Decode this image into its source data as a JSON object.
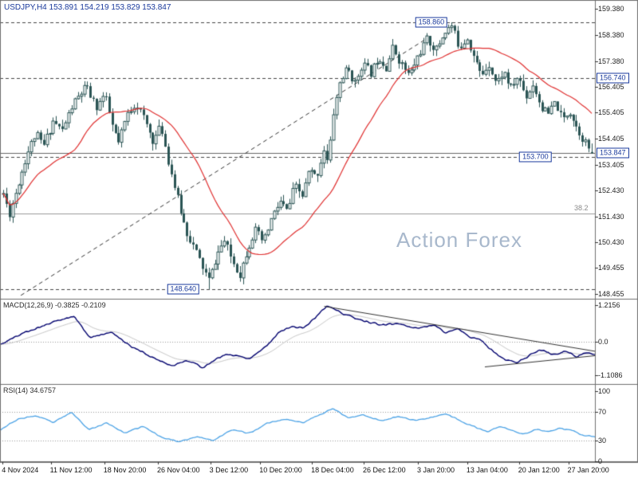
{
  "header": {
    "title": "USDJPY,H4 153.891 154.219 153.829 153.847"
  },
  "watermark": "Action Forex",
  "colors": {
    "background": "#ffffff",
    "candle": "#2a5454",
    "ma_line": "#e03030",
    "macd_line": "#00006e",
    "macd_signal": "#c6c6c6",
    "rsi_line": "#4aa2e6",
    "level_line": "#444444",
    "label_accent": "#1a3a9c",
    "axis_text": "#222222",
    "watermark": "#a8b8cc",
    "grid_dotted": "#999999",
    "separator": "#707070",
    "trendline": "#333333",
    "fib_line": "#999999",
    "current_price_line": "#666666"
  },
  "chart_data": {
    "type": "candlestick",
    "symbol": "USDJPY",
    "timeframe": "H4",
    "current_bar": {
      "open": 153.891,
      "high": 154.219,
      "low": 153.829,
      "close": 153.847
    },
    "price_axis_ticks": [
      {
        "text": "159.380",
        "value": 159.38
      },
      {
        "text": "158.380",
        "value": 158.38
      },
      {
        "text": "157.380",
        "value": 157.38
      },
      {
        "text": "156.405",
        "value": 156.405
      },
      {
        "text": "155.405",
        "value": 155.405
      },
      {
        "text": "154.405",
        "value": 154.405
      },
      {
        "text": "153.405",
        "value": 153.405
      },
      {
        "text": "152.430",
        "value": 152.43
      },
      {
        "text": "151.430",
        "value": 151.43
      },
      {
        "text": "150.430",
        "value": 150.43
      },
      {
        "text": "149.455",
        "value": 149.455
      },
      {
        "text": "148.455",
        "value": 148.455
      }
    ],
    "levels": [
      {
        "text": "158.860",
        "value": 158.86,
        "label_x": 0.725,
        "placement": "chart"
      },
      {
        "text": "156.740",
        "value": 156.74,
        "label_x": null,
        "placement": "axis"
      },
      {
        "text": "153.700",
        "value": 153.7,
        "label_x": 0.9,
        "placement": "chart"
      },
      {
        "text": "148.640",
        "value": 148.64,
        "label_x": 0.308,
        "placement": "chart"
      }
    ],
    "current_price": {
      "text": "153.847",
      "value": 153.847
    },
    "fibonacci": {
      "text": "38.2",
      "value": 151.55
    },
    "trendline": {
      "x1": 0.035,
      "p1": 148.4,
      "x2": 0.718,
      "p2": 158.25
    },
    "x_axis_labels": [
      {
        "text": "4 Nov 2024",
        "x": 0.003
      },
      {
        "text": "11 Nov 12:00",
        "x": 0.084
      },
      {
        "text": "18 Nov 20:00",
        "x": 0.174
      },
      {
        "text": "26 Nov 04:00",
        "x": 0.264
      },
      {
        "text": "3 Dec 12:00",
        "x": 0.352
      },
      {
        "text": "10 Dec 20:00",
        "x": 0.436
      },
      {
        "text": "18 Dec 04:00",
        "x": 0.523
      },
      {
        "text": "26 Dec 12:00",
        "x": 0.61
      },
      {
        "text": "3 Jan 20:00",
        "x": 0.701
      },
      {
        "text": "13 Jan 04:00",
        "x": 0.784
      },
      {
        "text": "20 Jan 12:00",
        "x": 0.871
      },
      {
        "text": "27 Jan 20:00",
        "x": 0.954
      }
    ],
    "price_path_anchors": [
      [
        0.0,
        152.3
      ],
      [
        0.01,
        151.5
      ],
      [
        0.022,
        152.4
      ],
      [
        0.04,
        153.8
      ],
      [
        0.055,
        154.6
      ],
      [
        0.068,
        154.1
      ],
      [
        0.085,
        155.1
      ],
      [
        0.1,
        154.7
      ],
      [
        0.118,
        155.7
      ],
      [
        0.14,
        156.4
      ],
      [
        0.158,
        155.6
      ],
      [
        0.172,
        156.1
      ],
      [
        0.185,
        154.9
      ],
      [
        0.196,
        154.2
      ],
      [
        0.21,
        155.3
      ],
      [
        0.225,
        155.8
      ],
      [
        0.24,
        155.1
      ],
      [
        0.255,
        154.3
      ],
      [
        0.268,
        154.9
      ],
      [
        0.28,
        153.6
      ],
      [
        0.295,
        152.2
      ],
      [
        0.31,
        150.9
      ],
      [
        0.325,
        150.2
      ],
      [
        0.338,
        149.5
      ],
      [
        0.35,
        148.95
      ],
      [
        0.362,
        149.9
      ],
      [
        0.375,
        150.5
      ],
      [
        0.39,
        149.7
      ],
      [
        0.402,
        149.2
      ],
      [
        0.415,
        150.2
      ],
      [
        0.428,
        150.9
      ],
      [
        0.442,
        150.4
      ],
      [
        0.455,
        151.3
      ],
      [
        0.47,
        152.0
      ],
      [
        0.483,
        151.6
      ],
      [
        0.495,
        152.6
      ],
      [
        0.508,
        152.2
      ],
      [
        0.52,
        153.2
      ],
      [
        0.532,
        152.9
      ],
      [
        0.545,
        154.0
      ],
      [
        0.552,
        153.4
      ],
      [
        0.56,
        155.3
      ],
      [
        0.572,
        156.6
      ],
      [
        0.585,
        157.1
      ],
      [
        0.598,
        156.5
      ],
      [
        0.61,
        157.3
      ],
      [
        0.625,
        156.9
      ],
      [
        0.638,
        157.6
      ],
      [
        0.65,
        157.1
      ],
      [
        0.662,
        157.9
      ],
      [
        0.675,
        157.3
      ],
      [
        0.69,
        156.8
      ],
      [
        0.705,
        157.6
      ],
      [
        0.72,
        158.2
      ],
      [
        0.735,
        157.8
      ],
      [
        0.75,
        158.5
      ],
      [
        0.762,
        158.72
      ],
      [
        0.775,
        157.9
      ],
      [
        0.788,
        158.3
      ],
      [
        0.8,
        157.5
      ],
      [
        0.812,
        156.8
      ],
      [
        0.825,
        157.3
      ],
      [
        0.838,
        156.5
      ],
      [
        0.85,
        157.0
      ],
      [
        0.862,
        156.3
      ],
      [
        0.875,
        156.8
      ],
      [
        0.888,
        156.0
      ],
      [
        0.9,
        156.5
      ],
      [
        0.912,
        155.7
      ],
      [
        0.925,
        155.3
      ],
      [
        0.938,
        155.8
      ],
      [
        0.95,
        155.1
      ],
      [
        0.962,
        155.5
      ],
      [
        0.975,
        154.8
      ],
      [
        0.988,
        154.3
      ],
      [
        1.0,
        153.85
      ]
    ],
    "indicators": {
      "macd": {
        "label": "MACD(12,26,9) -0.3825 -0.2109",
        "params": "12,26,9",
        "macd_value": -0.3825,
        "signal_value": -0.2109,
        "axis_ticks": [
          {
            "text": "1.2156",
            "value": 1.2156
          },
          {
            "text": "0.0",
            "value": 0
          },
          {
            "text": "-1.1086",
            "value": -1.1086
          }
        ],
        "anchors": [
          [
            0.0,
            -0.1
          ],
          [
            0.04,
            0.3
          ],
          [
            0.09,
            0.65
          ],
          [
            0.125,
            0.85
          ],
          [
            0.15,
            0.15
          ],
          [
            0.19,
            0.3
          ],
          [
            0.22,
            -0.15
          ],
          [
            0.26,
            -0.55
          ],
          [
            0.29,
            -0.8
          ],
          [
            0.315,
            -0.6
          ],
          [
            0.34,
            -0.85
          ],
          [
            0.38,
            -0.4
          ],
          [
            0.42,
            -0.55
          ],
          [
            0.45,
            -0.1
          ],
          [
            0.47,
            0.35
          ],
          [
            0.49,
            0.5
          ],
          [
            0.51,
            0.45
          ],
          [
            0.53,
            0.8
          ],
          [
            0.55,
            1.2
          ],
          [
            0.58,
            0.9
          ],
          [
            0.61,
            0.7
          ],
          [
            0.64,
            0.55
          ],
          [
            0.67,
            0.6
          ],
          [
            0.7,
            0.45
          ],
          [
            0.73,
            0.55
          ],
          [
            0.75,
            0.3
          ],
          [
            0.77,
            0.45
          ],
          [
            0.79,
            0.15
          ],
          [
            0.81,
            0.05
          ],
          [
            0.83,
            -0.35
          ],
          [
            0.85,
            -0.6
          ],
          [
            0.87,
            -0.7
          ],
          [
            0.89,
            -0.45
          ],
          [
            0.91,
            -0.25
          ],
          [
            0.93,
            -0.45
          ],
          [
            0.95,
            -0.3
          ],
          [
            0.97,
            -0.5
          ],
          [
            0.985,
            -0.35
          ],
          [
            1.0,
            -0.3825
          ]
        ],
        "wedge": [
          {
            "x1": 0.545,
            "v1": 1.17,
            "x2": 1.005,
            "v2": -0.33
          },
          {
            "x1": 0.815,
            "v1": -0.83,
            "x2": 1.005,
            "v2": -0.45
          }
        ]
      },
      "rsi": {
        "label": "RSI(14) 34.6757",
        "period": 14,
        "value": 34.6757,
        "overbought": 70,
        "oversold": 30,
        "axis_ticks": [
          {
            "text": "100",
            "value": 100
          },
          {
            "text": "70",
            "value": 70
          },
          {
            "text": "30",
            "value": 30
          },
          {
            "text": "0",
            "value": 0
          }
        ],
        "anchors": [
          [
            0.0,
            45
          ],
          [
            0.03,
            60
          ],
          [
            0.06,
            65
          ],
          [
            0.09,
            55
          ],
          [
            0.12,
            70
          ],
          [
            0.15,
            45
          ],
          [
            0.18,
            55
          ],
          [
            0.21,
            40
          ],
          [
            0.24,
            50
          ],
          [
            0.27,
            35
          ],
          [
            0.3,
            28
          ],
          [
            0.33,
            35
          ],
          [
            0.36,
            30
          ],
          [
            0.39,
            45
          ],
          [
            0.42,
            40
          ],
          [
            0.45,
            55
          ],
          [
            0.48,
            60
          ],
          [
            0.51,
            55
          ],
          [
            0.54,
            68
          ],
          [
            0.56,
            75
          ],
          [
            0.585,
            62
          ],
          [
            0.61,
            66
          ],
          [
            0.64,
            58
          ],
          [
            0.67,
            64
          ],
          [
            0.7,
            58
          ],
          [
            0.72,
            62
          ],
          [
            0.75,
            68
          ],
          [
            0.78,
            55
          ],
          [
            0.8,
            48
          ],
          [
            0.82,
            42
          ],
          [
            0.84,
            50
          ],
          [
            0.86,
            44
          ],
          [
            0.88,
            38
          ],
          [
            0.9,
            46
          ],
          [
            0.92,
            42
          ],
          [
            0.94,
            47
          ],
          [
            0.96,
            44
          ],
          [
            0.98,
            37
          ],
          [
            1.0,
            34.6757
          ]
        ]
      }
    }
  }
}
